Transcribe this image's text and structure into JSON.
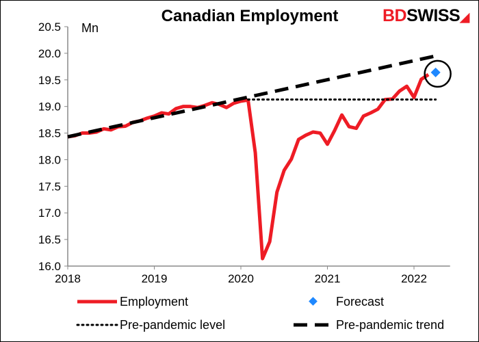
{
  "logo": {
    "part1": "BD",
    "part2": "SWISS",
    "colors": {
      "part1": "#ee1c25",
      "part2": "#000000"
    }
  },
  "chart_data": {
    "type": "line",
    "title": "Canadian Employment",
    "ylabel": "Mn",
    "xlabel": "",
    "ylim": [
      16.0,
      20.5
    ],
    "yticks": [
      "16.0",
      "16.5",
      "17.0",
      "17.5",
      "18.0",
      "18.5",
      "19.0",
      "19.5",
      "20.0",
      "20.5"
    ],
    "xlim": [
      "2018-01",
      "2022-06"
    ],
    "xticks": [
      "2018",
      "2019",
      "2020",
      "2021",
      "2022"
    ],
    "grid": false,
    "legend_position": "bottom",
    "series": [
      {
        "name": "Employment",
        "style": "solid",
        "color": "#ee1c25",
        "x_start": "2018-01",
        "frequency": "monthly",
        "values": [
          18.43,
          18.45,
          18.5,
          18.5,
          18.52,
          18.58,
          18.56,
          18.62,
          18.63,
          18.7,
          18.73,
          18.78,
          18.82,
          18.88,
          18.86,
          18.96,
          19.0,
          19.0,
          18.98,
          19.02,
          19.07,
          19.04,
          18.98,
          19.06,
          19.1,
          19.12,
          18.13,
          16.14,
          16.46,
          17.39,
          17.8,
          18.01,
          18.38,
          18.46,
          18.52,
          18.5,
          18.29,
          18.55,
          18.84,
          18.62,
          18.59,
          18.82,
          18.88,
          18.95,
          19.13,
          19.14,
          19.29,
          19.38,
          19.17,
          19.51,
          19.6
        ]
      },
      {
        "name": "Forecast",
        "style": "marker",
        "color": "#1e88ff",
        "points": [
          {
            "x": "2022-04",
            "y": 19.64
          }
        ]
      },
      {
        "name": "Pre-pandemic level",
        "style": "dotted",
        "color": "#000000",
        "points": [
          {
            "x": "2020-02",
            "y": 19.13
          },
          {
            "x": "2022-04",
            "y": 19.13
          }
        ]
      },
      {
        "name": "Pre-pandemic trend",
        "style": "dashed",
        "color": "#000000",
        "points": [
          {
            "x": "2018-01",
            "y": 18.43
          },
          {
            "x": "2022-04",
            "y": 19.95
          }
        ]
      }
    ],
    "annotations": [
      {
        "type": "circle",
        "target": "Forecast"
      }
    ]
  }
}
